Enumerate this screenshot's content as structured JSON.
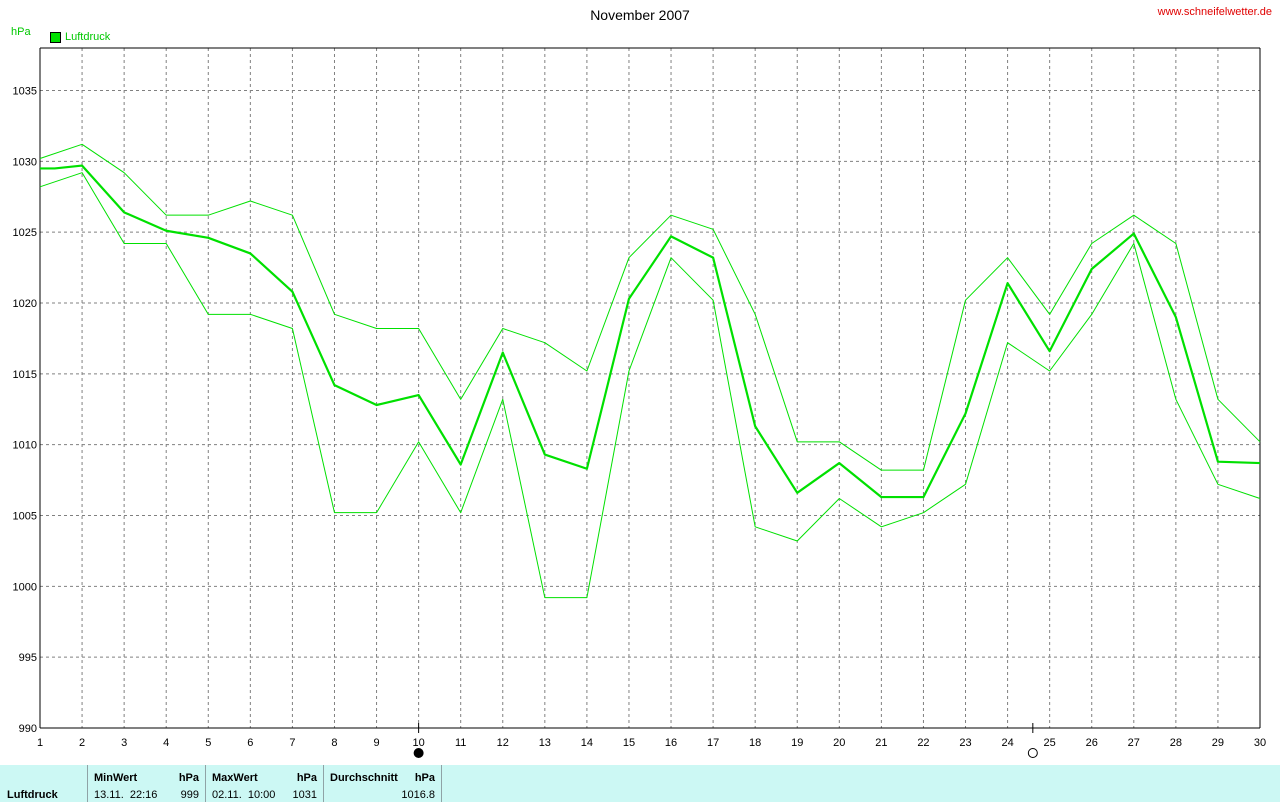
{
  "header": {
    "title": "November 2007",
    "site": "www.schneifelwetter.de",
    "unit": "hPa",
    "legend_label": "Luftdruck"
  },
  "chart_data": {
    "type": "line",
    "title": "November 2007",
    "ylabel": "hPa",
    "xlabel": "",
    "ylim": [
      990,
      1038
    ],
    "xlim": [
      1,
      30
    ],
    "x_ticks": [
      1,
      2,
      3,
      4,
      5,
      6,
      7,
      8,
      9,
      10,
      11,
      12,
      13,
      14,
      15,
      16,
      17,
      18,
      19,
      20,
      21,
      22,
      23,
      24,
      25,
      26,
      27,
      28,
      29,
      30
    ],
    "y_ticks": [
      990,
      995,
      1000,
      1005,
      1010,
      1015,
      1020,
      1025,
      1030,
      1035
    ],
    "grid": true,
    "legend_position": "top-left",
    "moon_phases": [
      {
        "day": 10,
        "phase": "new-moon"
      },
      {
        "day": 24.6,
        "phase": "full-moon"
      }
    ],
    "series": [
      {
        "name": "Luftdruck",
        "role": "average",
        "color": "#00e000",
        "x": [
          1,
          1.35,
          2,
          3,
          4,
          5,
          6,
          7,
          8,
          9,
          10,
          11,
          12,
          13,
          14,
          15,
          16,
          17,
          18,
          19,
          20,
          21,
          22,
          23,
          24,
          25,
          26,
          27,
          28,
          29,
          30
        ],
        "values": [
          1029.5,
          1029.5,
          1029.7,
          1026.4,
          1025.1,
          1024.6,
          1023.5,
          1020.8,
          1014.2,
          1012.8,
          1013.5,
          1008.6,
          1016.5,
          1009.3,
          1008.3,
          1020.3,
          1024.7,
          1023.2,
          1011.3,
          1006.6,
          1008.7,
          1006.3,
          1006.3,
          1012.2,
          1021.4,
          1016.6,
          1022.4,
          1024.9,
          1019.0,
          1008.8,
          1008.7
        ]
      },
      {
        "role": "maximum",
        "color": "#00e000",
        "x": [
          1,
          2,
          3,
          4,
          5,
          6,
          7,
          8,
          9,
          10,
          11,
          12,
          13,
          14,
          15,
          16,
          17,
          18,
          19,
          20,
          21,
          22,
          23,
          24,
          25,
          26,
          27,
          28,
          29,
          30
        ],
        "values": [
          1030.2,
          1031.2,
          1029.2,
          1026.2,
          1026.2,
          1027.2,
          1026.2,
          1019.2,
          1018.2,
          1018.2,
          1013.2,
          1018.2,
          1017.2,
          1015.2,
          1023.2,
          1026.2,
          1025.2,
          1019.2,
          1010.2,
          1010.2,
          1008.2,
          1008.2,
          1020.2,
          1023.2,
          1019.2,
          1024.2,
          1026.2,
          1024.2,
          1013.2,
          1010.2
        ]
      },
      {
        "role": "minimum",
        "color": "#00e000",
        "x": [
          1,
          2,
          3,
          4,
          5,
          6,
          7,
          8,
          9,
          10,
          11,
          12,
          13,
          14,
          15,
          16,
          17,
          18,
          19,
          20,
          21,
          22,
          23,
          24,
          25,
          26,
          27,
          28,
          29,
          30
        ],
        "values": [
          1028.2,
          1029.2,
          1024.2,
          1024.2,
          1019.2,
          1019.2,
          1018.2,
          1005.2,
          1005.2,
          1010.2,
          1005.2,
          1013.2,
          999.2,
          999.2,
          1015.2,
          1023.2,
          1020.2,
          1004.2,
          1003.2,
          1006.2,
          1004.2,
          1005.2,
          1007.2,
          1017.2,
          1015.2,
          1019.2,
          1024.2,
          1013.2,
          1007.2,
          1006.2
        ]
      }
    ]
  },
  "footer": {
    "row_label": "Luftdruck",
    "min": {
      "header": "MinWert",
      "unit": "hPa",
      "datetime": "13.11.  22:16",
      "value": "999"
    },
    "max": {
      "header": "MaxWert",
      "unit": "hPa",
      "datetime": "02.11.  10:00",
      "value": "1031"
    },
    "avg": {
      "header": "Durchschnitt",
      "unit": "hPa",
      "value": "1016.8"
    }
  }
}
